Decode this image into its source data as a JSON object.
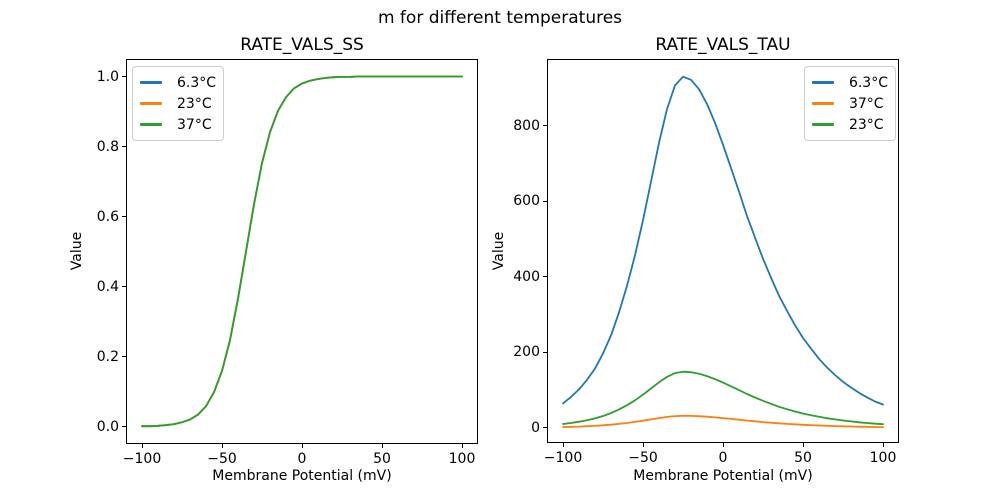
{
  "figure": {
    "suptitle": "m for different temperatures",
    "background": "#ffffff"
  },
  "colors": {
    "series_blue": "#1f77b4",
    "series_orange": "#ff7f0e",
    "series_green": "#2ca02c",
    "axes_border": "#000000",
    "legend_border": "#cccccc"
  },
  "chart_data": [
    {
      "type": "line",
      "title": "RATE_VALS_SS",
      "xlabel": "Membrane Potential (mV)",
      "ylabel": "Value",
      "xlim": [
        -110,
        110
      ],
      "ylim": [
        -0.05,
        1.05
      ],
      "grid": false,
      "legend_position": "upper-left",
      "xtick_values": [
        -100,
        -50,
        0,
        50,
        100
      ],
      "xtick_labels": [
        "−100",
        "−50",
        "0",
        "50",
        "100"
      ],
      "ytick_values": [
        0.0,
        0.2,
        0.4,
        0.6,
        0.8,
        1.0
      ],
      "ytick_labels": [
        "0.0",
        "0.2",
        "0.4",
        "0.6",
        "0.8",
        "1.0"
      ],
      "x": [
        -100,
        -95,
        -90,
        -85,
        -80,
        -75,
        -70,
        -65,
        -60,
        -55,
        -50,
        -45,
        -40,
        -35,
        -30,
        -25,
        -20,
        -15,
        -10,
        -5,
        0,
        5,
        10,
        15,
        20,
        25,
        30,
        35,
        40,
        45,
        50,
        55,
        60,
        65,
        70,
        75,
        80,
        85,
        90,
        95,
        100
      ],
      "series": [
        {
          "name": "6.3°C",
          "color": "#1f77b4",
          "values": [
            0.001,
            0.001,
            0.002,
            0.004,
            0.007,
            0.012,
            0.02,
            0.034,
            0.058,
            0.098,
            0.159,
            0.247,
            0.365,
            0.5,
            0.635,
            0.753,
            0.841,
            0.902,
            0.941,
            0.966,
            0.98,
            0.988,
            0.993,
            0.996,
            0.998,
            0.999,
            0.999,
            1.0,
            1.0,
            1.0,
            1.0,
            1.0,
            1.0,
            1.0,
            1.0,
            1.0,
            1.0,
            1.0,
            1.0,
            1.0,
            1.0
          ]
        },
        {
          "name": "23°C",
          "color": "#ff7f0e",
          "values": [
            0.001,
            0.001,
            0.002,
            0.004,
            0.007,
            0.012,
            0.02,
            0.034,
            0.058,
            0.098,
            0.159,
            0.247,
            0.365,
            0.5,
            0.635,
            0.753,
            0.841,
            0.902,
            0.941,
            0.966,
            0.98,
            0.988,
            0.993,
            0.996,
            0.998,
            0.999,
            0.999,
            1.0,
            1.0,
            1.0,
            1.0,
            1.0,
            1.0,
            1.0,
            1.0,
            1.0,
            1.0,
            1.0,
            1.0,
            1.0,
            1.0
          ]
        },
        {
          "name": "37°C",
          "color": "#2ca02c",
          "values": [
            0.001,
            0.001,
            0.002,
            0.004,
            0.007,
            0.012,
            0.02,
            0.034,
            0.058,
            0.098,
            0.159,
            0.247,
            0.365,
            0.5,
            0.635,
            0.753,
            0.841,
            0.902,
            0.941,
            0.966,
            0.98,
            0.988,
            0.993,
            0.996,
            0.998,
            0.999,
            0.999,
            1.0,
            1.0,
            1.0,
            1.0,
            1.0,
            1.0,
            1.0,
            1.0,
            1.0,
            1.0,
            1.0,
            1.0,
            1.0,
            1.0
          ]
        }
      ]
    },
    {
      "type": "line",
      "title": "RATE_VALS_TAU",
      "xlabel": "Membrane Potential (mV)",
      "ylabel": "Value",
      "xlim": [
        -110,
        110
      ],
      "ylim": [
        -40,
        977
      ],
      "grid": false,
      "legend_position": "upper-right",
      "xtick_values": [
        -100,
        -50,
        0,
        50,
        100
      ],
      "xtick_labels": [
        "−100",
        "−50",
        "0",
        "50",
        "100"
      ],
      "ytick_values": [
        0,
        200,
        400,
        600,
        800
      ],
      "ytick_labels": [
        "0",
        "200",
        "400",
        "600",
        "800"
      ],
      "x": [
        -100,
        -95,
        -90,
        -85,
        -80,
        -75,
        -70,
        -65,
        -60,
        -55,
        -50,
        -45,
        -40,
        -35,
        -30,
        -25,
        -20,
        -15,
        -10,
        -5,
        0,
        5,
        10,
        15,
        20,
        25,
        30,
        35,
        40,
        45,
        50,
        55,
        60,
        65,
        70,
        75,
        80,
        85,
        90,
        95,
        100
      ],
      "series": [
        {
          "name": "6.3°C",
          "color": "#1f77b4",
          "values": [
            65,
            82,
            102,
            127,
            157,
            197,
            245,
            306,
            376,
            457,
            550,
            652,
            755,
            844,
            907,
            930,
            922,
            897,
            858,
            808,
            750,
            688,
            626,
            561,
            504,
            448,
            398,
            350,
            310,
            272,
            238,
            210,
            183,
            160,
            140,
            122,
            107,
            93,
            81,
            70,
            62
          ]
        },
        {
          "name": "37°C",
          "color": "#ff7f0e",
          "values": [
            2.2,
            2.8,
            3.5,
            4.4,
            5.4,
            6.8,
            8.4,
            10.6,
            13,
            15.8,
            19,
            22.5,
            26,
            29.1,
            31.3,
            32.1,
            31.8,
            30.9,
            29.6,
            27.9,
            25.9,
            23.7,
            21.6,
            19.3,
            17.4,
            15.4,
            13.7,
            12.1,
            10.7,
            9.4,
            8.2,
            7.2,
            6.3,
            5.5,
            4.8,
            4.2,
            3.7,
            3.2,
            2.8,
            2.4,
            2.1
          ]
        },
        {
          "name": "23°C",
          "color": "#2ca02c",
          "values": [
            10.4,
            13.1,
            16.3,
            20.3,
            25.1,
            31.5,
            39.2,
            49,
            60.2,
            73.1,
            88,
            104.3,
            120.8,
            135,
            145.1,
            148.8,
            147.5,
            143.5,
            137.3,
            129.3,
            120,
            110.1,
            100.2,
            89.8,
            80.6,
            71.7,
            63.7,
            56,
            49.6,
            43.5,
            38.1,
            33.6,
            29.3,
            25.6,
            22.4,
            19.5,
            17.1,
            14.9,
            13,
            11.2,
            9.9
          ]
        }
      ]
    }
  ]
}
